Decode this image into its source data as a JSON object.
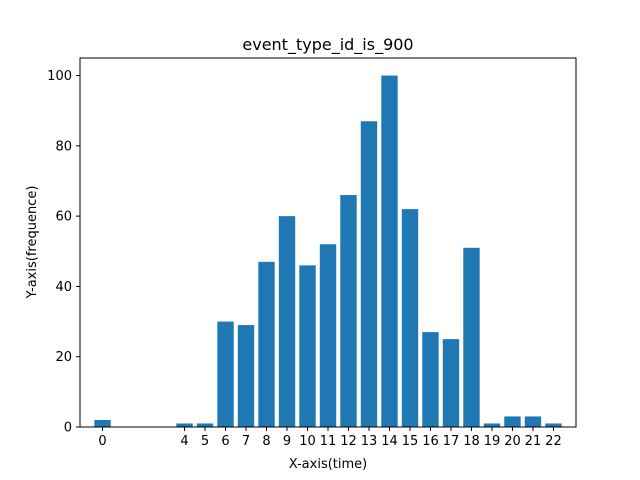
{
  "chart_data": {
    "type": "bar",
    "title": "event_type_id_is_900",
    "xlabel": "X-axis(time)",
    "ylabel": "Y-axis(frequence)",
    "x": [
      0,
      4,
      5,
      6,
      7,
      8,
      9,
      10,
      11,
      12,
      13,
      14,
      15,
      16,
      17,
      18,
      19,
      20,
      21,
      22
    ],
    "values": [
      2,
      1,
      1,
      30,
      29,
      47,
      60,
      46,
      52,
      66,
      87,
      100,
      62,
      27,
      25,
      51,
      1,
      3,
      3,
      1
    ],
    "xtick_labels": [
      "0",
      "4",
      "5",
      "6",
      "7",
      "8",
      "9",
      "10",
      "11",
      "12",
      "13",
      "14",
      "15",
      "16",
      "17",
      "18",
      "19",
      "20",
      "21",
      "22"
    ],
    "yticks": [
      0,
      20,
      40,
      60,
      80,
      100
    ],
    "xlim": [
      -1.1,
      23.1
    ],
    "ylim": [
      0,
      105
    ],
    "bar_color": "#1f77b4",
    "grid": false,
    "legend": "none"
  }
}
